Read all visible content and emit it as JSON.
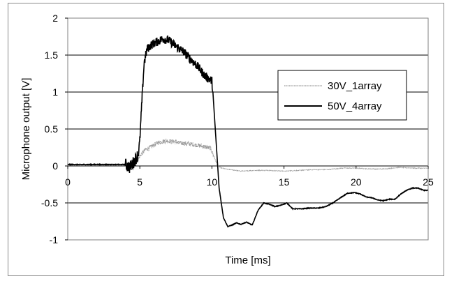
{
  "chart_data": {
    "type": "line",
    "title": "",
    "xlabel": "Time [ms]",
    "ylabel": "Microphone output [V]",
    "xlim": [
      0,
      25
    ],
    "ylim": [
      -1,
      2
    ],
    "xticks": [
      0,
      5,
      10,
      15,
      20,
      25
    ],
    "yticks": [
      -1,
      -0.5,
      0,
      0.5,
      1,
      1.5,
      2
    ],
    "xtick_labels": [
      "0",
      "5",
      "10",
      "15",
      "20",
      "25"
    ],
    "ytick_labels": [
      "-1",
      "-0.5",
      "0",
      "0.5",
      "1",
      "1.5",
      "2"
    ],
    "grid": "horizontal",
    "legend_position": "right",
    "series": [
      {
        "name": "30V_1array",
        "color": "#9a9a9a",
        "style": "noisy",
        "noise_amplitude": 0.03,
        "x": [
          0,
          4.1,
          4.3,
          4.6,
          4.9,
          5.1,
          5.4,
          5.8,
          6.3,
          6.8,
          7.3,
          7.8,
          8.4,
          9.0,
          9.5,
          9.9,
          10.2,
          10.4,
          10.7,
          11.0,
          12,
          13,
          14,
          15,
          16,
          17,
          18,
          19,
          20,
          21,
          22,
          23,
          24,
          25
        ],
        "y": [
          0.01,
          0.01,
          0.02,
          0.06,
          0.1,
          0.16,
          0.22,
          0.26,
          0.32,
          0.34,
          0.33,
          0.31,
          0.3,
          0.28,
          0.26,
          0.24,
          0.1,
          0.0,
          -0.03,
          -0.04,
          -0.07,
          -0.06,
          -0.06,
          -0.07,
          -0.06,
          -0.05,
          -0.05,
          -0.03,
          -0.03,
          -0.04,
          -0.04,
          -0.02,
          -0.03,
          -0.03
        ]
      },
      {
        "name": "50V_4array",
        "color": "#000000",
        "style": "noisy",
        "noise_amplitude": 0.06,
        "x": [
          0,
          4.0,
          4.3,
          4.6,
          4.9,
          5.0,
          5.15,
          5.3,
          5.5,
          5.8,
          6.2,
          6.6,
          7.0,
          7.5,
          8.0,
          8.5,
          9.0,
          9.5,
          10.0,
          10.1,
          10.3,
          10.5,
          10.8,
          11.1,
          11.4,
          11.7,
          12.0,
          12.4,
          12.8,
          13.2,
          13.6,
          14.0,
          14.4,
          14.8,
          15.2,
          15.6,
          16.2,
          16.8,
          17.4,
          17.9,
          18.4,
          19.0,
          19.4,
          19.9,
          20.3,
          20.7,
          21.1,
          21.5,
          21.9,
          22.3,
          22.7,
          23.1,
          23.5,
          23.9,
          24.3,
          24.7,
          25.0
        ],
        "y": [
          0.02,
          0.02,
          -0.02,
          0.06,
          0.16,
          0.35,
          0.9,
          1.4,
          1.58,
          1.64,
          1.68,
          1.72,
          1.7,
          1.62,
          1.55,
          1.45,
          1.35,
          1.22,
          1.15,
          0.9,
          0.3,
          -0.3,
          -0.7,
          -0.82,
          -0.8,
          -0.77,
          -0.79,
          -0.76,
          -0.8,
          -0.6,
          -0.5,
          -0.52,
          -0.55,
          -0.53,
          -0.5,
          -0.58,
          -0.58,
          -0.57,
          -0.57,
          -0.55,
          -0.5,
          -0.42,
          -0.37,
          -0.36,
          -0.38,
          -0.42,
          -0.43,
          -0.46,
          -0.47,
          -0.45,
          -0.45,
          -0.38,
          -0.33,
          -0.3,
          -0.3,
          -0.33,
          -0.33
        ]
      }
    ]
  }
}
